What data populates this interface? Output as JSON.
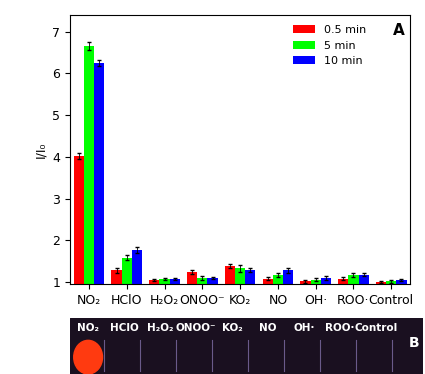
{
  "chart_data": {
    "type": "bar",
    "annotation": "A",
    "y_label": "I/I₀",
    "categories": [
      "NO₂",
      "HClO",
      "H₂O₂",
      "ONOO⁻",
      "KO₂",
      "NO",
      "OH·",
      "ROO·",
      "Control"
    ],
    "series": [
      {
        "name": "0.5 min",
        "color": "#ff0000",
        "values": [
          4.02,
          1.28,
          1.05,
          1.25,
          1.38,
          1.08,
          1.02,
          1.08,
          1.0
        ],
        "errors": [
          0.08,
          0.06,
          0.03,
          0.05,
          0.05,
          0.04,
          0.03,
          0.04,
          0.03
        ]
      },
      {
        "name": "5 min",
        "color": "#00ff00",
        "values": [
          6.65,
          1.58,
          1.07,
          1.1,
          1.33,
          1.18,
          1.06,
          1.17,
          1.02
        ],
        "errors": [
          0.1,
          0.06,
          0.03,
          0.04,
          0.08,
          0.05,
          0.04,
          0.05,
          0.03
        ]
      },
      {
        "name": "10 min",
        "color": "#0000ff",
        "values": [
          6.25,
          1.78,
          1.08,
          1.1,
          1.3,
          1.28,
          1.1,
          1.18,
          1.05
        ],
        "errors": [
          0.08,
          0.07,
          0.03,
          0.03,
          0.05,
          0.05,
          0.04,
          0.04,
          0.03
        ]
      }
    ],
    "ylim": [
      0.95,
      7.4
    ],
    "yticks": [
      1,
      2,
      3,
      4,
      5,
      6,
      7
    ],
    "legend": "upper right"
  },
  "photo": {
    "labels": [
      "NO₂",
      "HClO",
      "H₂O₂",
      "ONOO⁻",
      "KO₂",
      "NO",
      "OH·",
      "ROO·",
      "Control"
    ],
    "annotation": "B"
  }
}
